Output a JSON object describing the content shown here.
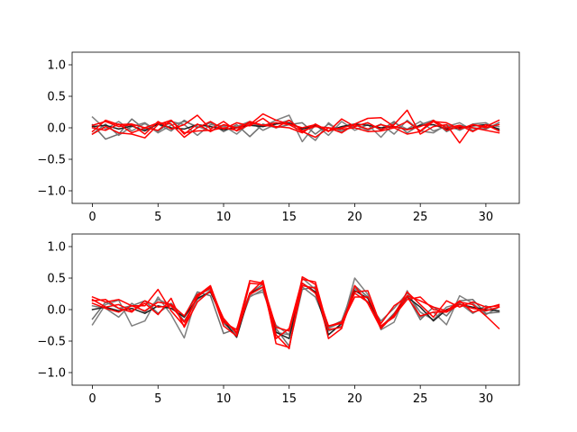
{
  "chart_data": [
    {
      "type": "line",
      "title": "",
      "xlabel": "",
      "ylabel": "",
      "xlim": [
        -1.55,
        32.55
      ],
      "ylim": [
        -1.2,
        1.2
      ],
      "xticks": [
        0,
        5,
        10,
        15,
        20,
        25,
        30
      ],
      "yticks": [
        -1.0,
        -0.5,
        0.0,
        0.5,
        1.0
      ],
      "xtick_labels": [
        "0",
        "5",
        "10",
        "15",
        "20",
        "25",
        "30"
      ],
      "ytick_labels": [
        "−1.0",
        "−0.5",
        "0.0",
        "0.5",
        "1.0"
      ],
      "grid": false,
      "x": [
        0,
        1,
        2,
        3,
        4,
        5,
        6,
        7,
        8,
        9,
        10,
        11,
        12,
        13,
        14,
        15,
        16,
        17,
        18,
        19,
        20,
        21,
        22,
        23,
        24,
        25,
        26,
        27,
        28,
        29,
        30,
        31
      ],
      "series": [
        {
          "color": "#808080",
          "values": [
            0.17,
            -0.02,
            0.1,
            -0.05,
            0.07,
            -0.08,
            0.04,
            0.1,
            0.02,
            -0.05,
            0.03,
            -0.1,
            0.08,
            0.02,
            0.12,
            0.2,
            -0.22,
            0.05,
            -0.12,
            0.1,
            -0.04,
            0.05,
            -0.15,
            0.08,
            -0.02,
            0.1,
            -0.05,
            0.02,
            0.08,
            -0.04,
            0.05,
            0.02
          ]
        },
        {
          "color": "#6e6e6e",
          "values": [
            0.05,
            -0.18,
            -0.1,
            0.14,
            -0.03,
            0.06,
            -0.05,
            0.12,
            0.0,
            0.08,
            -0.06,
            0.05,
            -0.14,
            0.06,
            0.0,
            0.05,
            0.08,
            -0.1,
            0.06,
            -0.05,
            0.02,
            0.08,
            -0.04,
            0.1,
            -0.08,
            0.05,
            0.12,
            -0.06,
            0.04,
            0.0,
            -0.02,
            0.08
          ]
        },
        {
          "color": "#7a7a7a",
          "values": [
            -0.1,
            0.06,
            -0.12,
            0.02,
            0.08,
            -0.06,
            0.1,
            0.05,
            -0.12,
            0.05,
            0.03,
            0.02,
            0.1,
            -0.04,
            0.06,
            0.12,
            -0.04,
            -0.2,
            0.08,
            -0.08,
            0.05,
            -0.04,
            0.06,
            -0.1,
            0.12,
            -0.05,
            -0.08,
            0.05,
            -0.04,
            0.06,
            0.08,
            -0.04
          ]
        },
        {
          "color": "#222222",
          "values": [
            0.02,
            0.04,
            -0.02,
            0.03,
            -0.05,
            0.06,
            0.0,
            -0.02,
            0.05,
            0.02,
            -0.03,
            0.0,
            0.04,
            0.02,
            0.06,
            0.08,
            -0.02,
            0.03,
            -0.05,
            0.02,
            0.06,
            0.04,
            0.0,
            0.02,
            -0.03,
            0.04,
            0.05,
            -0.02,
            0.0,
            0.03,
            0.05,
            -0.02
          ]
        },
        {
          "color": "#ff0000",
          "values": [
            0.04,
            0.1,
            0.02,
            0.05,
            -0.1,
            0.1,
            -0.02,
            0.05,
            0.2,
            -0.02,
            0.1,
            -0.05,
            0.05,
            0.22,
            0.12,
            0.06,
            0.0,
            0.05,
            -0.06,
            0.14,
            0.02,
            0.08,
            -0.03,
            0.05,
            0.28,
            -0.1,
            0.02,
            0.05,
            -0.24,
            0.05,
            0.02,
            0.12
          ]
        },
        {
          "color": "#ff0000",
          "values": [
            -0.06,
            0.12,
            0.05,
            0.06,
            0.0,
            0.08,
            0.06,
            -0.15,
            0.0,
            0.1,
            -0.02,
            0.08,
            0.03,
            0.15,
            0.0,
            0.12,
            -0.05,
            0.02,
            0.0,
            -0.08,
            0.06,
            0.15,
            0.16,
            0.02,
            -0.03,
            0.02,
            0.1,
            0.08,
            -0.02,
            0.05,
            0.0,
            0.05
          ]
        },
        {
          "color": "#ff0000",
          "values": [
            0.0,
            -0.04,
            0.06,
            -0.08,
            0.0,
            -0.04,
            0.12,
            -0.1,
            0.06,
            -0.06,
            0.05,
            0.0,
            0.08,
            0.04,
            0.02,
            0.0,
            -0.08,
            0.06,
            -0.05,
            0.0,
            0.05,
            -0.02,
            0.05,
            0.0,
            0.1,
            -0.05,
            0.12,
            0.0,
            0.04,
            -0.06,
            0.05,
            -0.05
          ]
        },
        {
          "color": "#ff0000",
          "values": [
            -0.1,
            0.02,
            -0.08,
            -0.1,
            -0.16,
            0.05,
            0.12,
            -0.08,
            -0.05,
            -0.04,
            0.0,
            -0.04,
            0.1,
            0.04,
            0.08,
            0.05,
            -0.06,
            -0.15,
            0.0,
            -0.02,
            0.0,
            -0.06,
            -0.05,
            0.0,
            -0.1,
            -0.06,
            0.1,
            -0.04,
            0.02,
            0.0,
            -0.04,
            -0.08
          ]
        }
      ]
    },
    {
      "type": "line",
      "title": "",
      "xlabel": "",
      "ylabel": "",
      "xlim": [
        -1.55,
        32.55
      ],
      "ylim": [
        -1.2,
        1.2
      ],
      "xticks": [
        0,
        5,
        10,
        15,
        20,
        25,
        30
      ],
      "yticks": [
        -1.0,
        -0.5,
        0.0,
        0.5,
        1.0
      ],
      "xtick_labels": [
        "0",
        "5",
        "10",
        "15",
        "20",
        "25",
        "30"
      ],
      "ytick_labels": [
        "−1.0",
        "−0.5",
        "0.0",
        "0.5",
        "1.0"
      ],
      "grid": false,
      "x": [
        0,
        1,
        2,
        3,
        4,
        5,
        6,
        7,
        8,
        9,
        10,
        11,
        12,
        13,
        14,
        15,
        16,
        17,
        18,
        19,
        20,
        21,
        22,
        23,
        24,
        25,
        26,
        27,
        28,
        29,
        30,
        31
      ],
      "series": [
        {
          "color": "#808080",
          "values": [
            -0.24,
            0.08,
            0.15,
            -0.26,
            -0.18,
            0.2,
            -0.08,
            -0.45,
            0.24,
            0.32,
            -0.22,
            -0.4,
            0.22,
            0.28,
            -0.25,
            -0.4,
            0.5,
            0.32,
            -0.34,
            -0.26,
            0.5,
            0.24,
            -0.32,
            -0.2,
            0.3,
            -0.12,
            -0.04,
            -0.24,
            0.22,
            0.1,
            -0.08,
            0.04
          ]
        },
        {
          "color": "#6e6e6e",
          "values": [
            -0.15,
            0.12,
            0.02,
            0.06,
            0.14,
            -0.06,
            0.1,
            -0.12,
            0.28,
            0.22,
            -0.38,
            -0.3,
            0.26,
            0.4,
            -0.3,
            -0.58,
            0.32,
            0.36,
            -0.28,
            -0.18,
            0.38,
            0.2,
            -0.28,
            -0.06,
            0.22,
            -0.16,
            0.04,
            -0.1,
            0.14,
            0.16,
            -0.06,
            -0.04
          ]
        },
        {
          "color": "#7a7a7a",
          "values": [
            0.06,
            0.02,
            -0.12,
            0.1,
            -0.04,
            0.16,
            0.08,
            -0.18,
            0.16,
            0.3,
            -0.2,
            -0.36,
            0.2,
            0.32,
            -0.36,
            -0.4,
            0.36,
            0.2,
            -0.3,
            -0.2,
            0.34,
            0.12,
            -0.18,
            0.02,
            0.26,
            -0.04,
            -0.16,
            0.04,
            0.1,
            -0.06,
            0.06,
            -0.04
          ]
        },
        {
          "color": "#222222",
          "values": [
            0.0,
            0.04,
            -0.02,
            0.02,
            -0.06,
            0.06,
            0.02,
            -0.12,
            0.18,
            0.28,
            -0.18,
            -0.44,
            0.26,
            0.36,
            -0.36,
            -0.46,
            0.42,
            0.28,
            -0.4,
            -0.22,
            0.3,
            0.18,
            -0.3,
            -0.08,
            0.2,
            0.04,
            -0.18,
            0.0,
            0.08,
            0.04,
            0.0,
            -0.02
          ]
        },
        {
          "color": "#ff0000",
          "values": [
            0.2,
            0.12,
            0.16,
            0.06,
            0.06,
            0.32,
            -0.02,
            -0.26,
            0.22,
            0.38,
            -0.2,
            -0.32,
            0.46,
            0.42,
            -0.54,
            -0.6,
            0.38,
            0.34,
            -0.26,
            -0.22,
            0.2,
            0.2,
            -0.22,
            0.06,
            0.2,
            -0.1,
            -0.04,
            -0.04,
            0.12,
            0.08,
            -0.1,
            -0.3
          ]
        },
        {
          "color": "#ff0000",
          "values": [
            0.16,
            0.04,
            0.08,
            -0.02,
            0.1,
            -0.08,
            0.18,
            -0.28,
            0.12,
            0.3,
            -0.14,
            -0.38,
            0.26,
            0.46,
            -0.4,
            -0.62,
            0.52,
            0.4,
            -0.46,
            -0.3,
            0.38,
            0.1,
            -0.3,
            -0.08,
            0.28,
            0.08,
            -0.12,
            0.14,
            0.04,
            0.12,
            0.04,
            0.06
          ]
        },
        {
          "color": "#ff0000",
          "values": [
            0.14,
            0.16,
            0.02,
            -0.04,
            0.14,
            0.04,
            0.06,
            -0.2,
            0.2,
            0.36,
            -0.16,
            -0.36,
            0.24,
            0.36,
            -0.46,
            -0.3,
            0.48,
            0.44,
            -0.32,
            -0.28,
            0.28,
            0.3,
            -0.26,
            -0.1,
            0.16,
            0.2,
            0.0,
            -0.04,
            0.08,
            0.02,
            -0.02,
            0.04
          ]
        },
        {
          "color": "#ff0000",
          "values": [
            0.1,
            0.02,
            -0.04,
            0.06,
            -0.02,
            0.12,
            0.08,
            -0.1,
            0.24,
            0.34,
            -0.26,
            -0.42,
            0.42,
            0.4,
            -0.28,
            -0.34,
            0.42,
            0.26,
            -0.26,
            -0.2,
            0.26,
            0.12,
            -0.26,
            -0.12,
            0.22,
            0.14,
            0.04,
            -0.02,
            0.14,
            -0.04,
            0.02,
            0.08
          ]
        }
      ]
    }
  ]
}
